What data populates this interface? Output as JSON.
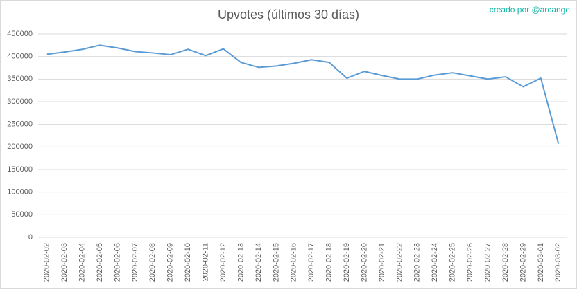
{
  "chart_data": {
    "type": "line",
    "title": "Upvotes (últimos 30 días)",
    "annotation": "creado por @arcange",
    "categories": [
      "2020-02-02",
      "2020-02-03",
      "2020-02-04",
      "2020-02-05",
      "2020-02-06",
      "2020-02-07",
      "2020-02-08",
      "2020-02-09",
      "2020-02-10",
      "2020-02-11",
      "2020-02-12",
      "2020-02-13",
      "2020-02-14",
      "2020-02-15",
      "2020-02-16",
      "2020-02-17",
      "2020-02-18",
      "2020-02-19",
      "2020-02-20",
      "2020-02-21",
      "2020-02-22",
      "2020-02-23",
      "2020-02-24",
      "2020-02-25",
      "2020-02-26",
      "2020-02-27",
      "2020-02-28",
      "2020-02-29",
      "2020-03-01",
      "2020-03-02"
    ],
    "values": [
      405000,
      410000,
      416000,
      425000,
      419000,
      411000,
      408000,
      404000,
      416000,
      402000,
      417000,
      387000,
      376000,
      379000,
      385000,
      393000,
      387000,
      352000,
      367000,
      358000,
      350000,
      350000,
      359000,
      364000,
      357000,
      350000,
      355000,
      333000,
      352000,
      207000
    ],
    "color": "#5b9bd5",
    "ylim": [
      0,
      450000
    ],
    "yticks": [
      0,
      50000,
      100000,
      150000,
      200000,
      250000,
      300000,
      350000,
      400000,
      450000
    ],
    "grid": true
  }
}
